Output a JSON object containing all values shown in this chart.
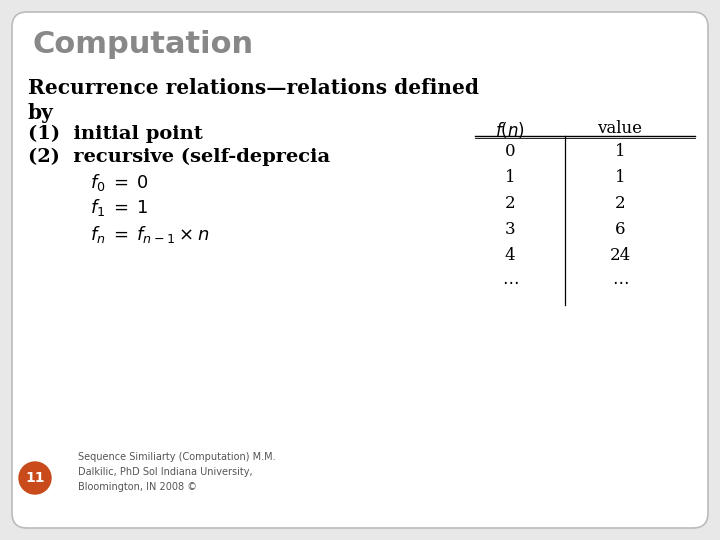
{
  "bg_color": "#e8e8e8",
  "slide_bg": "#ffffff",
  "title": "Computation",
  "title_color": "#888888",
  "title_fontsize": 22,
  "body_text_color": "#000000",
  "heading_line1": "Recurrence relations—relations defined",
  "heading_line2": "by",
  "item1": "(1)  initial point",
  "item2": "(2)  recursive (self-deprecia",
  "table_header_fn": "$f(n)$",
  "table_header_val": "value",
  "table_rows": [
    [
      "0",
      "1"
    ],
    [
      "1",
      "1"
    ],
    [
      "2",
      "2"
    ],
    [
      "3",
      "6"
    ],
    [
      "4",
      "24"
    ],
    [
      "$\\cdots$",
      "$\\cdots$"
    ]
  ],
  "footer_text": "Sequence Similiarty (Computation) M.M.\nDalkilic, PhD Sol Indiana University,\nBloomington, IN 2008 ©",
  "badge_color": "#c94a1a",
  "badge_text": "11",
  "badge_text_color": "#ffffff",
  "rounding": 15
}
